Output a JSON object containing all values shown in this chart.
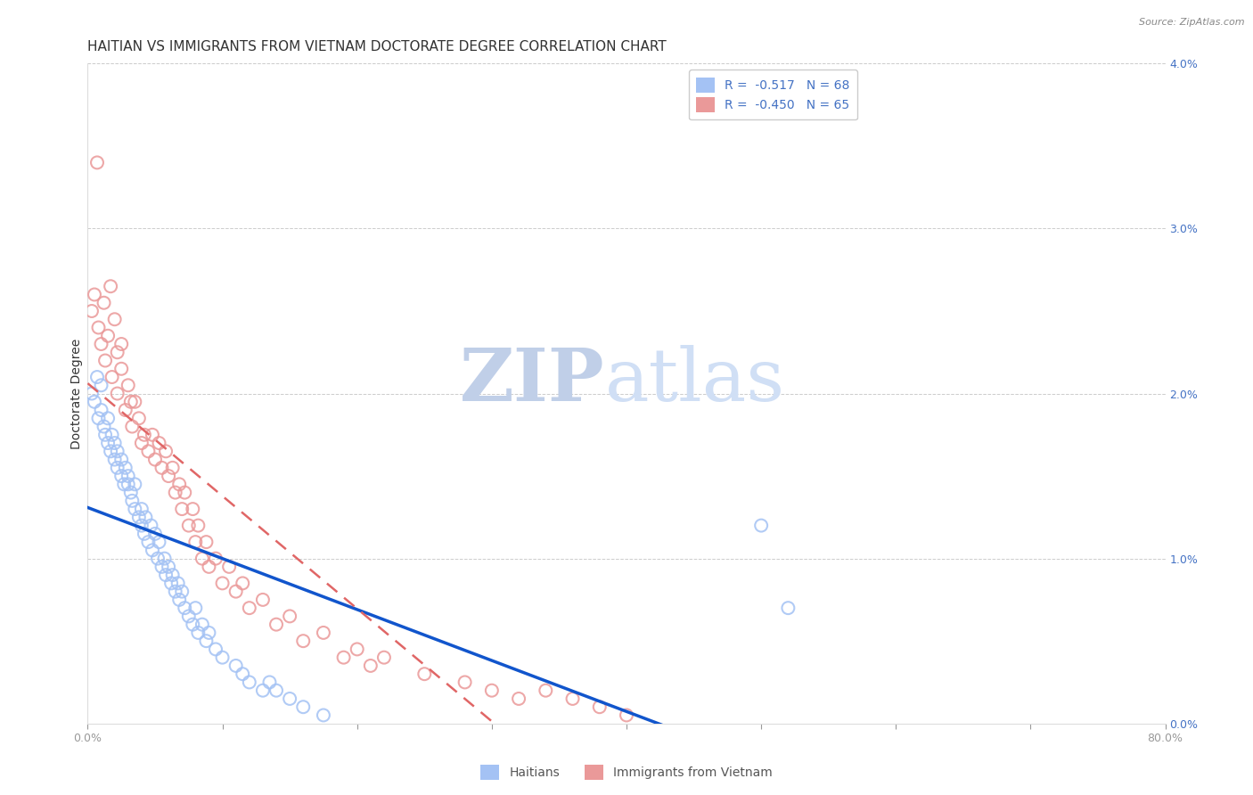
{
  "title": "HAITIAN VS IMMIGRANTS FROM VIETNAM DOCTORATE DEGREE CORRELATION CHART",
  "source": "Source: ZipAtlas.com",
  "ylabel": "Doctorate Degree",
  "xlim": [
    0.0,
    0.8
  ],
  "ylim": [
    0.0,
    0.04
  ],
  "xticks": [
    0.0,
    0.1,
    0.2,
    0.3,
    0.4,
    0.5,
    0.6,
    0.7,
    0.8
  ],
  "xticklabels": [
    "0.0%",
    "",
    "",
    "",
    "",
    "",
    "",
    "",
    "80.0%"
  ],
  "yticks_right": [
    0.0,
    0.01,
    0.02,
    0.03,
    0.04
  ],
  "yticks_right_labels": [
    "0.0%",
    "1.0%",
    "2.0%",
    "3.0%",
    "4.0%"
  ],
  "legend1_label": "R =  -0.517   N = 68",
  "legend2_label": "R =  -0.450   N = 65",
  "legend_text_color": "#4472c4",
  "color_blue": "#a4c2f4",
  "color_pink": "#ea9999",
  "color_line_blue": "#1155cc",
  "color_line_pink": "#e06666",
  "watermark_zip_color": "#c0cfe8",
  "watermark_atlas_color": "#d0dff5",
  "background_color": "#ffffff",
  "grid_color": "#cccccc",
  "title_fontsize": 11,
  "axis_label_fontsize": 10,
  "tick_fontsize": 9,
  "haitians_x": [
    0.003,
    0.005,
    0.007,
    0.008,
    0.01,
    0.01,
    0.012,
    0.013,
    0.015,
    0.015,
    0.017,
    0.018,
    0.02,
    0.02,
    0.022,
    0.022,
    0.025,
    0.025,
    0.027,
    0.028,
    0.03,
    0.03,
    0.032,
    0.033,
    0.035,
    0.035,
    0.038,
    0.04,
    0.04,
    0.042,
    0.043,
    0.045,
    0.047,
    0.048,
    0.05,
    0.052,
    0.053,
    0.055,
    0.057,
    0.058,
    0.06,
    0.062,
    0.063,
    0.065,
    0.067,
    0.068,
    0.07,
    0.072,
    0.075,
    0.078,
    0.08,
    0.082,
    0.085,
    0.088,
    0.09,
    0.095,
    0.1,
    0.11,
    0.115,
    0.12,
    0.13,
    0.135,
    0.14,
    0.15,
    0.16,
    0.175,
    0.5,
    0.52
  ],
  "haitians_y": [
    0.02,
    0.0195,
    0.021,
    0.0185,
    0.019,
    0.0205,
    0.018,
    0.0175,
    0.017,
    0.0185,
    0.0165,
    0.0175,
    0.016,
    0.017,
    0.0155,
    0.0165,
    0.015,
    0.016,
    0.0145,
    0.0155,
    0.0145,
    0.015,
    0.014,
    0.0135,
    0.013,
    0.0145,
    0.0125,
    0.013,
    0.012,
    0.0115,
    0.0125,
    0.011,
    0.012,
    0.0105,
    0.0115,
    0.01,
    0.011,
    0.0095,
    0.01,
    0.009,
    0.0095,
    0.0085,
    0.009,
    0.008,
    0.0085,
    0.0075,
    0.008,
    0.007,
    0.0065,
    0.006,
    0.007,
    0.0055,
    0.006,
    0.005,
    0.0055,
    0.0045,
    0.004,
    0.0035,
    0.003,
    0.0025,
    0.002,
    0.0025,
    0.002,
    0.0015,
    0.001,
    0.0005,
    0.012,
    0.007
  ],
  "vietnam_x": [
    0.003,
    0.005,
    0.007,
    0.008,
    0.01,
    0.012,
    0.013,
    0.015,
    0.017,
    0.018,
    0.02,
    0.022,
    0.022,
    0.025,
    0.025,
    0.028,
    0.03,
    0.032,
    0.033,
    0.035,
    0.038,
    0.04,
    0.042,
    0.045,
    0.048,
    0.05,
    0.053,
    0.055,
    0.058,
    0.06,
    0.063,
    0.065,
    0.068,
    0.07,
    0.072,
    0.075,
    0.078,
    0.08,
    0.082,
    0.085,
    0.088,
    0.09,
    0.095,
    0.1,
    0.105,
    0.11,
    0.115,
    0.12,
    0.13,
    0.14,
    0.15,
    0.16,
    0.175,
    0.19,
    0.2,
    0.21,
    0.22,
    0.25,
    0.28,
    0.3,
    0.32,
    0.34,
    0.36,
    0.38,
    0.4
  ],
  "vietnam_y": [
    0.025,
    0.026,
    0.034,
    0.024,
    0.023,
    0.0255,
    0.022,
    0.0235,
    0.0265,
    0.021,
    0.0245,
    0.0225,
    0.02,
    0.0215,
    0.023,
    0.019,
    0.0205,
    0.0195,
    0.018,
    0.0195,
    0.0185,
    0.017,
    0.0175,
    0.0165,
    0.0175,
    0.016,
    0.017,
    0.0155,
    0.0165,
    0.015,
    0.0155,
    0.014,
    0.0145,
    0.013,
    0.014,
    0.012,
    0.013,
    0.011,
    0.012,
    0.01,
    0.011,
    0.0095,
    0.01,
    0.0085,
    0.0095,
    0.008,
    0.0085,
    0.007,
    0.0075,
    0.006,
    0.0065,
    0.005,
    0.0055,
    0.004,
    0.0045,
    0.0035,
    0.004,
    0.003,
    0.0025,
    0.002,
    0.0015,
    0.002,
    0.0015,
    0.001,
    0.0005
  ]
}
